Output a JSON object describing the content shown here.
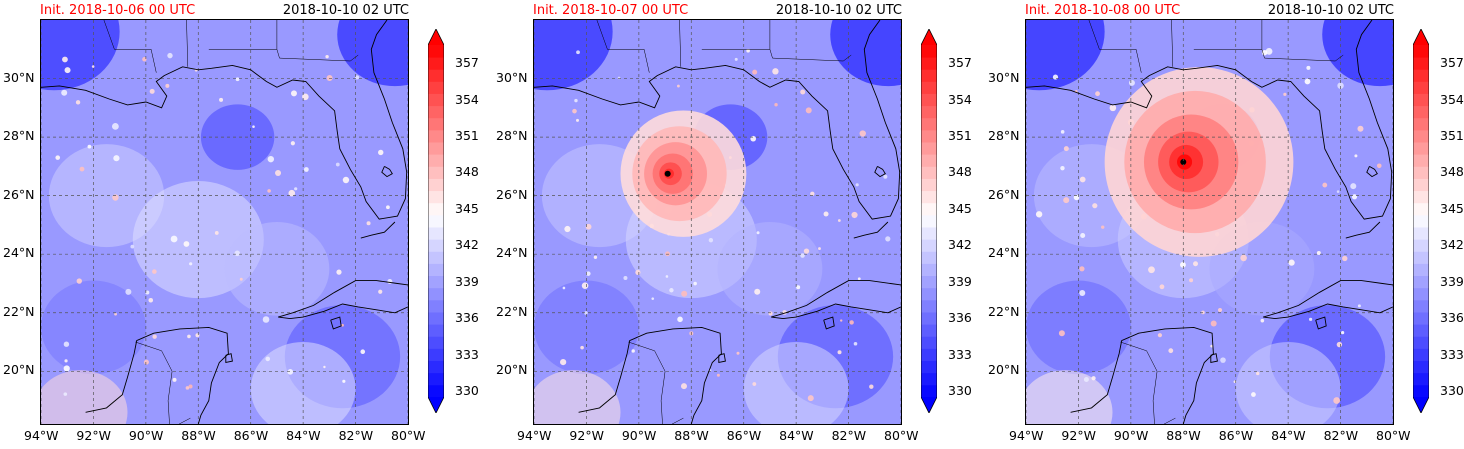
{
  "colors": {
    "cold": "#0000ff",
    "neutral": "#ffffff",
    "warm": "#ff0000",
    "init_title": "#ff0000",
    "coast": "#000000",
    "grid": "#555555"
  },
  "colorbar": {
    "min": 330,
    "max": 359,
    "step": 1,
    "ticks": [
      "357",
      "354",
      "351",
      "348",
      "345",
      "342",
      "339",
      "336",
      "333",
      "330"
    ],
    "extend": "both",
    "units": ""
  },
  "axes": {
    "lon_labels": [
      "94°W",
      "92°W",
      "90°W",
      "88°W",
      "86°W",
      "84°W",
      "82°W",
      "80°W"
    ],
    "lat_labels": [
      "30°N",
      "28°N",
      "26°N",
      "24°N",
      "22°N",
      "20°N"
    ],
    "lon_range": [
      -94,
      -80
    ],
    "lat_range": [
      18.2,
      32
    ]
  },
  "panels": [
    {
      "init_label": "Init. 2018-10-06 00 UTC",
      "valid_label": "2018-10-10 02 UTC",
      "storm": null,
      "storm_strength": 0.0,
      "storm_radius_deg": 0
    },
    {
      "init_label": "Init. 2018-10-07 00 UTC",
      "valid_label": "2018-10-10 02 UTC",
      "storm": {
        "lon": -88.9,
        "lat": 26.75
      },
      "storm_strength": 0.85,
      "storm_radius_deg": 2.4
    },
    {
      "init_label": "Init. 2018-10-08 00 UTC",
      "valid_label": "2018-10-10 02 UTC",
      "storm": {
        "lon": -88.0,
        "lat": 27.15
      },
      "storm_strength": 1.0,
      "storm_radius_deg": 3.6
    }
  ]
}
